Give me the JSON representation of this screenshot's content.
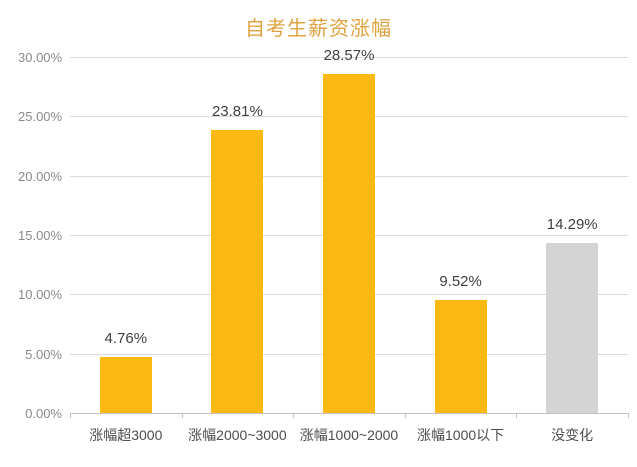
{
  "chart_data": {
    "type": "bar",
    "title": "自考生薪资涨幅",
    "categories": [
      "涨幅超3000",
      "涨幅2000~3000",
      "涨幅1000~2000",
      "涨幅1000以下",
      "没变化"
    ],
    "values": [
      4.76,
      23.81,
      28.57,
      9.52,
      14.29
    ],
    "data_labels": [
      "4.76%",
      "23.81%",
      "28.57%",
      "9.52%",
      "14.29%"
    ],
    "bar_colors": [
      "#FCB813",
      "#FCB813",
      "#FCB813",
      "#FCB813",
      "#D4D4D4"
    ],
    "y_ticks": [
      "30.00%",
      "25.00%",
      "20.00%",
      "15.00%",
      "10.00%",
      "5.00%",
      "0.00%"
    ],
    "ylim": [
      0,
      30
    ],
    "y_step": 5,
    "grid": true,
    "legend": false,
    "xlabel": "",
    "ylabel": ""
  },
  "colors": {
    "title": "#E0A23E",
    "y_axis_label": "#8A8A8A",
    "category_label": "#4D4D4D",
    "data_label": "#3F3F3F",
    "gridline": "#DBDBDB",
    "axis_line": "#C2C2C2",
    "background": "#FFFFFF"
  }
}
